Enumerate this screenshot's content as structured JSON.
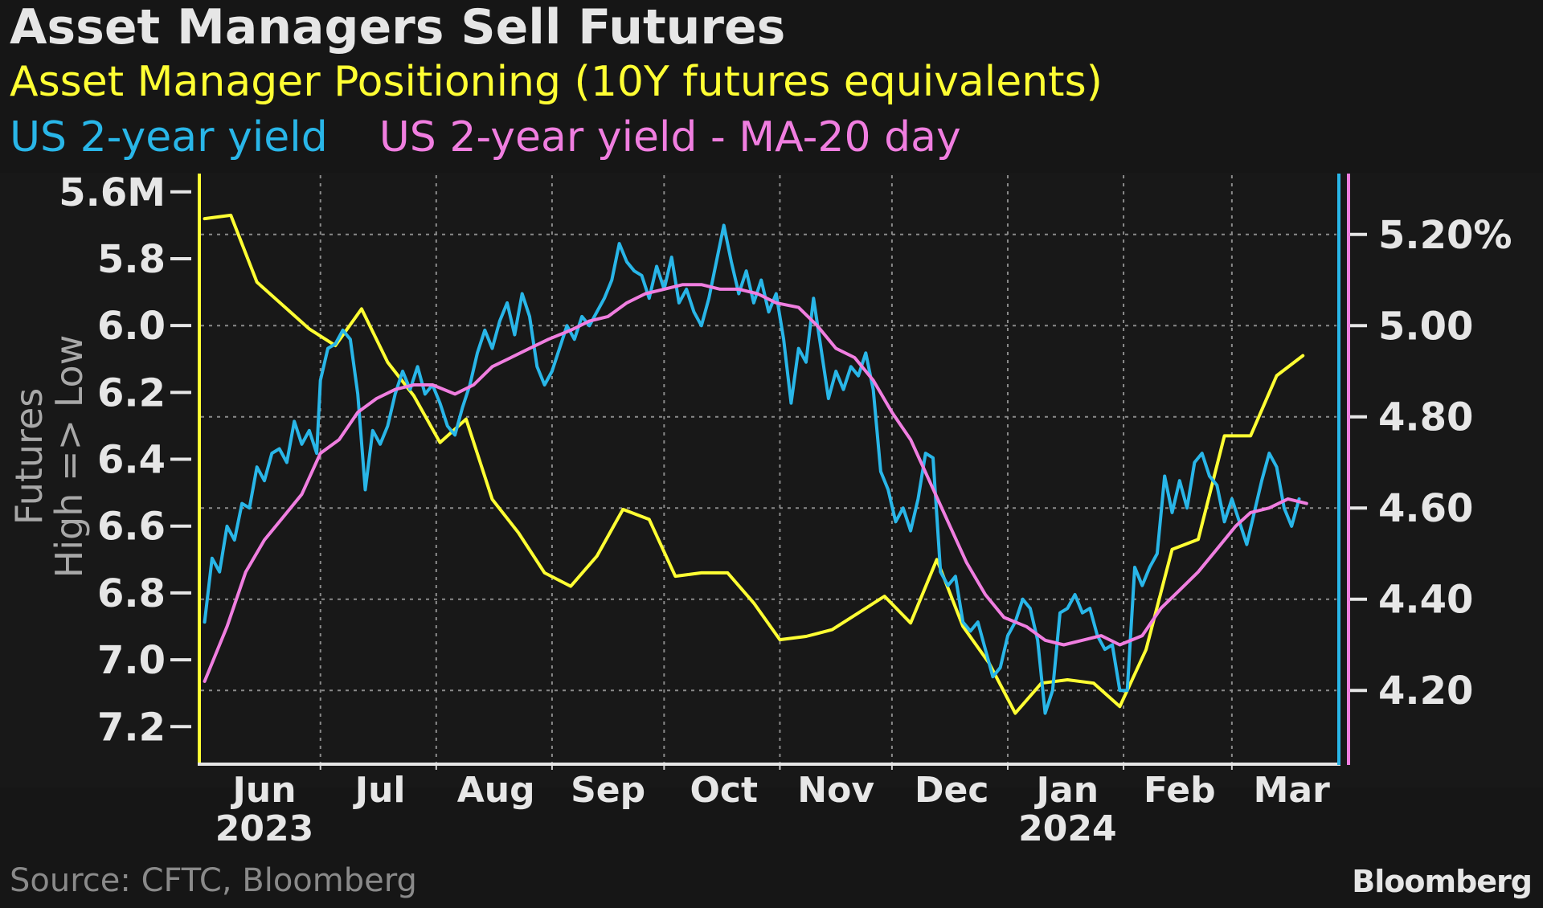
{
  "title": "Asset Managers Sell Futures",
  "legend": [
    {
      "label": "Asset Manager Positioning (10Y futures equivalents)",
      "color": "#ffff33"
    },
    {
      "label": "US 2-year yield",
      "color": "#29b6e8"
    },
    {
      "label": "US 2-year yield - MA-20 day",
      "color": "#f07ee0"
    }
  ],
  "source": "Source: CFTC, Bloomberg",
  "logo": "Bloomberg",
  "chart_data": {
    "type": "line",
    "y_left": {
      "label_lines": [
        "Futures",
        "High => Low"
      ],
      "range": [
        5.55,
        7.31
      ],
      "inverted": true,
      "ticks": [
        5.6,
        5.8,
        6.0,
        6.2,
        6.4,
        6.6,
        6.8,
        7.0,
        7.2
      ],
      "tick_labels": [
        "5.6M",
        "5.8",
        "6.0",
        "6.2",
        "6.4",
        "6.6",
        "6.8",
        "7.0",
        "7.2"
      ]
    },
    "y_right": {
      "range": [
        4.04,
        5.33
      ],
      "ticks": [
        4.2,
        4.4,
        4.6,
        4.8,
        5.0,
        5.2
      ],
      "tick_labels": [
        "4.20",
        "4.40",
        "4.60",
        "4.80",
        "5.00",
        "5.20%"
      ]
    },
    "x_axis": {
      "range": [
        "2023-05-29",
        "2024-03-28"
      ],
      "labels": [
        {
          "date": "2023-06-15",
          "label": "Jun",
          "sub": "2023"
        },
        {
          "date": "2023-07-16",
          "label": "Jul"
        },
        {
          "date": "2023-08-16",
          "label": "Aug"
        },
        {
          "date": "2023-09-15",
          "label": "Sep"
        },
        {
          "date": "2023-10-16",
          "label": "Oct"
        },
        {
          "date": "2023-11-15",
          "label": "Nov"
        },
        {
          "date": "2023-12-16",
          "label": "Dec"
        },
        {
          "date": "2024-01-16",
          "label": "Jan",
          "sub": "2024"
        },
        {
          "date": "2024-02-15",
          "label": "Feb"
        },
        {
          "date": "2024-03-16",
          "label": "Mar"
        }
      ],
      "gridlines": [
        "2023-06-30",
        "2023-07-31",
        "2023-08-31",
        "2023-09-30",
        "2023-10-31",
        "2023-11-30",
        "2023-12-31",
        "2024-01-31",
        "2024-02-29"
      ]
    },
    "grid": true,
    "series": [
      {
        "name": "Asset Manager Positioning (10Y futures equivalents)",
        "axis": "left",
        "color": "#ffff33",
        "points": [
          [
            "2023-05-30",
            5.68
          ],
          [
            "2023-06-06",
            5.67
          ],
          [
            "2023-06-13",
            5.87
          ],
          [
            "2023-06-20",
            5.94
          ],
          [
            "2023-06-27",
            6.01
          ],
          [
            "2023-07-04",
            6.06
          ],
          [
            "2023-07-11",
            5.95
          ],
          [
            "2023-07-18",
            6.11
          ],
          [
            "2023-07-25",
            6.21
          ],
          [
            "2023-08-01",
            6.35
          ],
          [
            "2023-08-08",
            6.28
          ],
          [
            "2023-08-15",
            6.52
          ],
          [
            "2023-08-22",
            6.62
          ],
          [
            "2023-08-29",
            6.74
          ],
          [
            "2023-09-05",
            6.78
          ],
          [
            "2023-09-12",
            6.69
          ],
          [
            "2023-09-19",
            6.55
          ],
          [
            "2023-09-26",
            6.58
          ],
          [
            "2023-10-03",
            6.75
          ],
          [
            "2023-10-10",
            6.74
          ],
          [
            "2023-10-17",
            6.74
          ],
          [
            "2023-10-24",
            6.83
          ],
          [
            "2023-10-31",
            6.94
          ],
          [
            "2023-11-07",
            6.93
          ],
          [
            "2023-11-14",
            6.91
          ],
          [
            "2023-11-21",
            6.86
          ],
          [
            "2023-11-28",
            6.81
          ],
          [
            "2023-12-05",
            6.89
          ],
          [
            "2023-12-12",
            6.7
          ],
          [
            "2023-12-19",
            6.9
          ],
          [
            "2023-12-26",
            7.01
          ],
          [
            "2024-01-02",
            7.16
          ],
          [
            "2024-01-09",
            7.07
          ],
          [
            "2024-01-16",
            7.06
          ],
          [
            "2024-01-23",
            7.07
          ],
          [
            "2024-01-30",
            7.14
          ],
          [
            "2024-02-06",
            6.97
          ],
          [
            "2024-02-13",
            6.67
          ],
          [
            "2024-02-20",
            6.64
          ],
          [
            "2024-02-27",
            6.33
          ],
          [
            "2024-03-05",
            6.33
          ],
          [
            "2024-03-12",
            6.15
          ],
          [
            "2024-03-19",
            6.09
          ]
        ]
      },
      {
        "name": "US 2-year yield",
        "axis": "right",
        "color": "#29b6e8",
        "points": [
          [
            "2023-05-30",
            4.35
          ],
          [
            "2023-06-01",
            4.49
          ],
          [
            "2023-06-03",
            4.46
          ],
          [
            "2023-06-05",
            4.56
          ],
          [
            "2023-06-07",
            4.53
          ],
          [
            "2023-06-09",
            4.61
          ],
          [
            "2023-06-11",
            4.6
          ],
          [
            "2023-06-13",
            4.69
          ],
          [
            "2023-06-15",
            4.66
          ],
          [
            "2023-06-17",
            4.72
          ],
          [
            "2023-06-19",
            4.73
          ],
          [
            "2023-06-21",
            4.7
          ],
          [
            "2023-06-23",
            4.79
          ],
          [
            "2023-06-25",
            4.74
          ],
          [
            "2023-06-27",
            4.77
          ],
          [
            "2023-06-29",
            4.72
          ],
          [
            "2023-06-30",
            4.88
          ],
          [
            "2023-07-02",
            4.95
          ],
          [
            "2023-07-04",
            4.96
          ],
          [
            "2023-07-06",
            4.99
          ],
          [
            "2023-07-08",
            4.97
          ],
          [
            "2023-07-10",
            4.85
          ],
          [
            "2023-07-12",
            4.64
          ],
          [
            "2023-07-14",
            4.77
          ],
          [
            "2023-07-16",
            4.74
          ],
          [
            "2023-07-18",
            4.78
          ],
          [
            "2023-07-20",
            4.85
          ],
          [
            "2023-07-22",
            4.9
          ],
          [
            "2023-07-24",
            4.86
          ],
          [
            "2023-07-26",
            4.91
          ],
          [
            "2023-07-28",
            4.85
          ],
          [
            "2023-07-30",
            4.87
          ],
          [
            "2023-08-01",
            4.83
          ],
          [
            "2023-08-03",
            4.78
          ],
          [
            "2023-08-05",
            4.76
          ],
          [
            "2023-08-07",
            4.82
          ],
          [
            "2023-08-09",
            4.87
          ],
          [
            "2023-08-11",
            4.94
          ],
          [
            "2023-08-13",
            4.99
          ],
          [
            "2023-08-15",
            4.95
          ],
          [
            "2023-08-17",
            5.01
          ],
          [
            "2023-08-19",
            5.05
          ],
          [
            "2023-08-21",
            4.98
          ],
          [
            "2023-08-23",
            5.07
          ],
          [
            "2023-08-25",
            5.02
          ],
          [
            "2023-08-27",
            4.91
          ],
          [
            "2023-08-29",
            4.87
          ],
          [
            "2023-08-31",
            4.9
          ],
          [
            "2023-09-02",
            4.95
          ],
          [
            "2023-09-04",
            5.0
          ],
          [
            "2023-09-06",
            4.97
          ],
          [
            "2023-09-08",
            5.02
          ],
          [
            "2023-09-10",
            5.0
          ],
          [
            "2023-09-12",
            5.03
          ],
          [
            "2023-09-14",
            5.06
          ],
          [
            "2023-09-16",
            5.1
          ],
          [
            "2023-09-18",
            5.18
          ],
          [
            "2023-09-20",
            5.14
          ],
          [
            "2023-09-22",
            5.12
          ],
          [
            "2023-09-24",
            5.11
          ],
          [
            "2023-09-26",
            5.06
          ],
          [
            "2023-09-28",
            5.13
          ],
          [
            "2023-09-30",
            5.08
          ],
          [
            "2023-10-02",
            5.15
          ],
          [
            "2023-10-04",
            5.05
          ],
          [
            "2023-10-06",
            5.08
          ],
          [
            "2023-10-08",
            5.03
          ],
          [
            "2023-10-10",
            5.0
          ],
          [
            "2023-10-12",
            5.06
          ],
          [
            "2023-10-14",
            5.14
          ],
          [
            "2023-10-16",
            5.22
          ],
          [
            "2023-10-18",
            5.14
          ],
          [
            "2023-10-20",
            5.07
          ],
          [
            "2023-10-22",
            5.12
          ],
          [
            "2023-10-24",
            5.05
          ],
          [
            "2023-10-26",
            5.1
          ],
          [
            "2023-10-28",
            5.03
          ],
          [
            "2023-10-30",
            5.07
          ],
          [
            "2023-11-01",
            4.97
          ],
          [
            "2023-11-03",
            4.83
          ],
          [
            "2023-11-05",
            4.95
          ],
          [
            "2023-11-07",
            4.92
          ],
          [
            "2023-11-09",
            5.06
          ],
          [
            "2023-11-11",
            4.95
          ],
          [
            "2023-11-13",
            4.84
          ],
          [
            "2023-11-15",
            4.9
          ],
          [
            "2023-11-17",
            4.86
          ],
          [
            "2023-11-19",
            4.91
          ],
          [
            "2023-11-21",
            4.89
          ],
          [
            "2023-11-23",
            4.94
          ],
          [
            "2023-11-25",
            4.86
          ],
          [
            "2023-11-27",
            4.68
          ],
          [
            "2023-11-29",
            4.64
          ],
          [
            "2023-12-01",
            4.57
          ],
          [
            "2023-12-03",
            4.6
          ],
          [
            "2023-12-05",
            4.55
          ],
          [
            "2023-12-07",
            4.62
          ],
          [
            "2023-12-09",
            4.72
          ],
          [
            "2023-12-11",
            4.71
          ],
          [
            "2023-12-13",
            4.46
          ],
          [
            "2023-12-15",
            4.43
          ],
          [
            "2023-12-17",
            4.45
          ],
          [
            "2023-12-19",
            4.35
          ],
          [
            "2023-12-21",
            4.33
          ],
          [
            "2023-12-23",
            4.35
          ],
          [
            "2023-12-25",
            4.29
          ],
          [
            "2023-12-27",
            4.23
          ],
          [
            "2023-12-29",
            4.25
          ],
          [
            "2023-12-31",
            4.32
          ],
          [
            "2024-01-02",
            4.35
          ],
          [
            "2024-01-04",
            4.4
          ],
          [
            "2024-01-06",
            4.38
          ],
          [
            "2024-01-08",
            4.31
          ],
          [
            "2024-01-10",
            4.15
          ],
          [
            "2024-01-12",
            4.2
          ],
          [
            "2024-01-14",
            4.37
          ],
          [
            "2024-01-16",
            4.38
          ],
          [
            "2024-01-18",
            4.41
          ],
          [
            "2024-01-20",
            4.37
          ],
          [
            "2024-01-22",
            4.38
          ],
          [
            "2024-01-24",
            4.32
          ],
          [
            "2024-01-26",
            4.29
          ],
          [
            "2024-01-28",
            4.3
          ],
          [
            "2024-01-30",
            4.2
          ],
          [
            "2024-02-01",
            4.2
          ],
          [
            "2024-02-03",
            4.47
          ],
          [
            "2024-02-05",
            4.43
          ],
          [
            "2024-02-07",
            4.47
          ],
          [
            "2024-02-09",
            4.5
          ],
          [
            "2024-02-11",
            4.67
          ],
          [
            "2024-02-13",
            4.59
          ],
          [
            "2024-02-15",
            4.66
          ],
          [
            "2024-02-17",
            4.6
          ],
          [
            "2024-02-19",
            4.7
          ],
          [
            "2024-02-21",
            4.72
          ],
          [
            "2024-02-23",
            4.67
          ],
          [
            "2024-02-25",
            4.65
          ],
          [
            "2024-02-27",
            4.57
          ],
          [
            "2024-02-29",
            4.62
          ],
          [
            "2024-03-02",
            4.57
          ],
          [
            "2024-03-04",
            4.52
          ],
          [
            "2024-03-06",
            4.59
          ],
          [
            "2024-03-08",
            4.66
          ],
          [
            "2024-03-10",
            4.72
          ],
          [
            "2024-03-12",
            4.69
          ],
          [
            "2024-03-14",
            4.6
          ],
          [
            "2024-03-16",
            4.56
          ],
          [
            "2024-03-18",
            4.62
          ]
        ]
      },
      {
        "name": "US 2-year yield - MA-20 day",
        "axis": "right",
        "color": "#f07ee0",
        "points": [
          [
            "2023-05-30",
            4.22
          ],
          [
            "2023-06-05",
            4.34
          ],
          [
            "2023-06-10",
            4.46
          ],
          [
            "2023-06-15",
            4.53
          ],
          [
            "2023-06-20",
            4.58
          ],
          [
            "2023-06-25",
            4.63
          ],
          [
            "2023-06-30",
            4.72
          ],
          [
            "2023-07-05",
            4.75
          ],
          [
            "2023-07-10",
            4.81
          ],
          [
            "2023-07-15",
            4.84
          ],
          [
            "2023-07-20",
            4.86
          ],
          [
            "2023-07-25",
            4.87
          ],
          [
            "2023-07-30",
            4.87
          ],
          [
            "2023-08-05",
            4.85
          ],
          [
            "2023-08-10",
            4.87
          ],
          [
            "2023-08-15",
            4.91
          ],
          [
            "2023-08-20",
            4.93
          ],
          [
            "2023-08-25",
            4.95
          ],
          [
            "2023-08-30",
            4.97
          ],
          [
            "2023-09-05",
            4.99
          ],
          [
            "2023-09-10",
            5.01
          ],
          [
            "2023-09-15",
            5.02
          ],
          [
            "2023-09-20",
            5.05
          ],
          [
            "2023-09-25",
            5.07
          ],
          [
            "2023-09-30",
            5.08
          ],
          [
            "2023-10-05",
            5.09
          ],
          [
            "2023-10-10",
            5.09
          ],
          [
            "2023-10-15",
            5.08
          ],
          [
            "2023-10-20",
            5.08
          ],
          [
            "2023-10-25",
            5.07
          ],
          [
            "2023-10-30",
            5.05
          ],
          [
            "2023-11-05",
            5.04
          ],
          [
            "2023-11-10",
            5.0
          ],
          [
            "2023-11-15",
            4.95
          ],
          [
            "2023-11-20",
            4.93
          ],
          [
            "2023-11-25",
            4.88
          ],
          [
            "2023-11-30",
            4.81
          ],
          [
            "2023-12-05",
            4.75
          ],
          [
            "2023-12-10",
            4.66
          ],
          [
            "2023-12-15",
            4.57
          ],
          [
            "2023-12-20",
            4.48
          ],
          [
            "2023-12-25",
            4.41
          ],
          [
            "2023-12-30",
            4.36
          ],
          [
            "2024-01-05",
            4.34
          ],
          [
            "2024-01-10",
            4.31
          ],
          [
            "2024-01-15",
            4.3
          ],
          [
            "2024-01-20",
            4.31
          ],
          [
            "2024-01-25",
            4.32
          ],
          [
            "2024-01-30",
            4.3
          ],
          [
            "2024-02-05",
            4.32
          ],
          [
            "2024-02-10",
            4.38
          ],
          [
            "2024-02-15",
            4.42
          ],
          [
            "2024-02-20",
            4.46
          ],
          [
            "2024-02-25",
            4.51
          ],
          [
            "2024-03-01",
            4.56
          ],
          [
            "2024-03-05",
            4.59
          ],
          [
            "2024-03-10",
            4.6
          ],
          [
            "2024-03-15",
            4.62
          ],
          [
            "2024-03-20",
            4.61
          ]
        ]
      }
    ]
  }
}
